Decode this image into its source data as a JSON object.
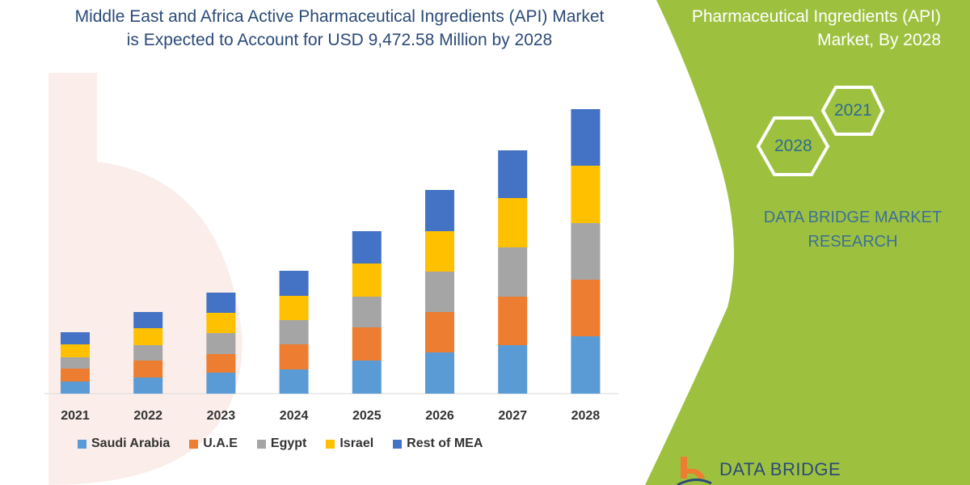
{
  "title": "Middle East and Africa Active Pharmaceutical Ingredients (API) Market is Expected to Account for USD 9,472.58 Million by 2028",
  "title_lines": [
    "Middle East and Africa Active Pharmaceutical Ingredients (API) Market",
    "is Expected to Account for USD 9,472.58 Million by 2028"
  ],
  "side_panel": {
    "title_lines": [
      "Pharmaceutical Ingredients (API)",
      "Market, By 2028"
    ],
    "hex_years": [
      "2021",
      "2028"
    ],
    "brand_lines": [
      "DATA BRIDGE MARKET",
      "RESEARCH"
    ],
    "logo_text": "DATA BRIDGE",
    "green": "#9dc13f"
  },
  "chart_data": {
    "type": "bar",
    "stacked": true,
    "categories": [
      "2021",
      "2022",
      "2023",
      "2024",
      "2025",
      "2026",
      "2027",
      "2028"
    ],
    "series": [
      {
        "name": "Saudi Arabia",
        "color": "#5b9bd5",
        "values": [
          15,
          20,
          26,
          30,
          41,
          51,
          60,
          71
        ]
      },
      {
        "name": "U.A.E",
        "color": "#ed7d31",
        "values": [
          16,
          21,
          23,
          31,
          41,
          50,
          60,
          70
        ]
      },
      {
        "name": "Egypt",
        "color": "#a5a5a5",
        "values": [
          14,
          19,
          26,
          30,
          38,
          50,
          61,
          70
        ]
      },
      {
        "name": "Israel",
        "color": "#ffc000",
        "values": [
          16,
          21,
          25,
          30,
          41,
          50,
          61,
          71
        ]
      },
      {
        "name": "Rest of MEA",
        "color": "#4472c4",
        "values": [
          15,
          20,
          25,
          31,
          40,
          51,
          59,
          70
        ]
      }
    ],
    "ylim": [
      0,
      360
    ],
    "y_axis_shown": false,
    "grid": false,
    "legend": "bottom"
  }
}
